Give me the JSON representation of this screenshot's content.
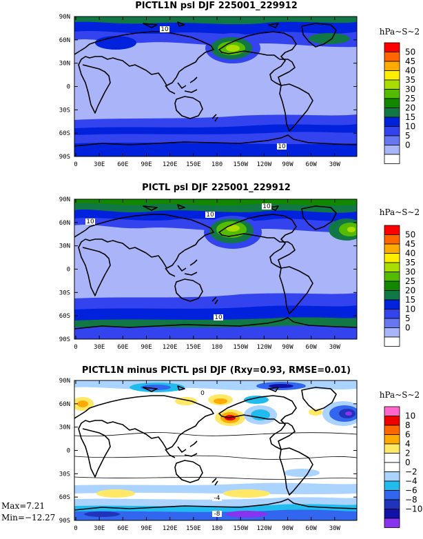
{
  "panels": [
    {
      "title": "PICTL1N psl DJF 225001_229912",
      "units": "hPa~S~2",
      "colorbar": {
        "labels": [
          "50",
          "45",
          "40",
          "35",
          "30",
          "25",
          "20",
          "15",
          "10",
          "5",
          "0"
        ],
        "colors": [
          "#ff0000",
          "#ff6600",
          "#ffaa00",
          "#ffee00",
          "#aadd00",
          "#55bb00",
          "#118800",
          "#117744",
          "#0022dd",
          "#3344ee",
          "#6677f0",
          "#aab4f8",
          "#ffffff"
        ]
      },
      "contour_labels": [
        "10",
        "10"
      ],
      "lat_ticks": [
        "90N",
        "60N",
        "30N",
        "0",
        "30S",
        "60S",
        "90S"
      ],
      "lon_ticks": [
        "0",
        "30E",
        "60E",
        "90E",
        "120E",
        "150E",
        "180",
        "150W",
        "120W",
        "90W",
        "60W",
        "30W"
      ]
    },
    {
      "title": "PICTL psl DJF 225001_229912",
      "units": "hPa~S~2",
      "colorbar": {
        "labels": [
          "50",
          "45",
          "40",
          "35",
          "30",
          "25",
          "20",
          "15",
          "10",
          "5",
          "0"
        ],
        "colors": [
          "#ff0000",
          "#ff6600",
          "#ffaa00",
          "#ffee00",
          "#aadd00",
          "#55bb00",
          "#118800",
          "#117744",
          "#0022dd",
          "#3344ee",
          "#6677f0",
          "#aab4f8",
          "#ffffff"
        ]
      },
      "contour_labels": [
        "10",
        "10",
        "10",
        "10"
      ],
      "lat_ticks": [
        "90N",
        "60N",
        "30N",
        "0",
        "30S",
        "60S",
        "90S"
      ],
      "lon_ticks": [
        "0",
        "30E",
        "60E",
        "90E",
        "120E",
        "150E",
        "180",
        "150W",
        "120W",
        "90W",
        "60W",
        "30W"
      ]
    },
    {
      "title": "PICTL1N minus PICTL psl DJF (Rxy=0.93, RMSE=0.01)",
      "units": "hPa~S~2",
      "colorbar": {
        "labels": [
          "10",
          "8",
          "6",
          "4",
          "2",
          "0",
          "−2",
          "−4",
          "−6",
          "−8",
          "−10"
        ],
        "colors": [
          "#ff66cc",
          "#ee0000",
          "#ff6600",
          "#ffaa00",
          "#ffe866",
          "#ffffff",
          "#ffffff",
          "#aad4ff",
          "#22bbee",
          "#3366ee",
          "#2233bb",
          "#1111aa",
          "#8833ee"
        ]
      },
      "contour_labels": [
        "0",
        "-4",
        "-8"
      ],
      "lat_ticks": [
        "90N",
        "60N",
        "30N",
        "0",
        "30S",
        "60S",
        "90S"
      ],
      "lon_ticks": [
        "0",
        "30E",
        "60E",
        "90E",
        "120E",
        "150E",
        "180",
        "150W",
        "120W",
        "90W",
        "60W",
        "30W"
      ],
      "max_label": "Max=7.21",
      "min_label": "Min=−12.27"
    }
  ]
}
